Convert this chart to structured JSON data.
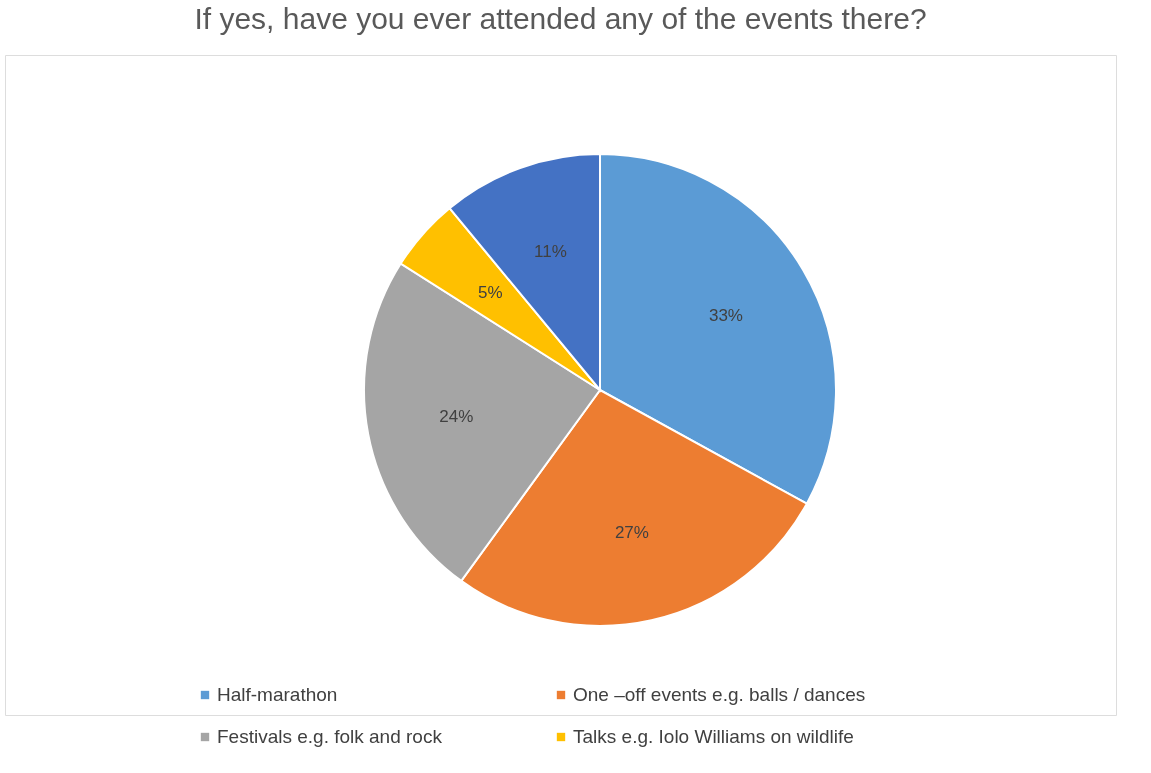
{
  "chart_data": {
    "type": "pie",
    "title": "If yes, have you ever attended any of the events there?",
    "categories": [
      "Half-marathon",
      "One –off events e.g. balls / dances",
      "Festivals e.g. folk and rock",
      "Talks e.g. Iolo Williams on wildlife",
      null
    ],
    "values": [
      33,
      27,
      24,
      5,
      11
    ],
    "colors": [
      "#5b9bd5",
      "#ed7d31",
      "#a5a5a5",
      "#ffc000",
      "#4472c4"
    ],
    "value_labels": [
      "33%",
      "27%",
      "24%",
      "5%",
      "11%"
    ],
    "legend": "bottom"
  }
}
